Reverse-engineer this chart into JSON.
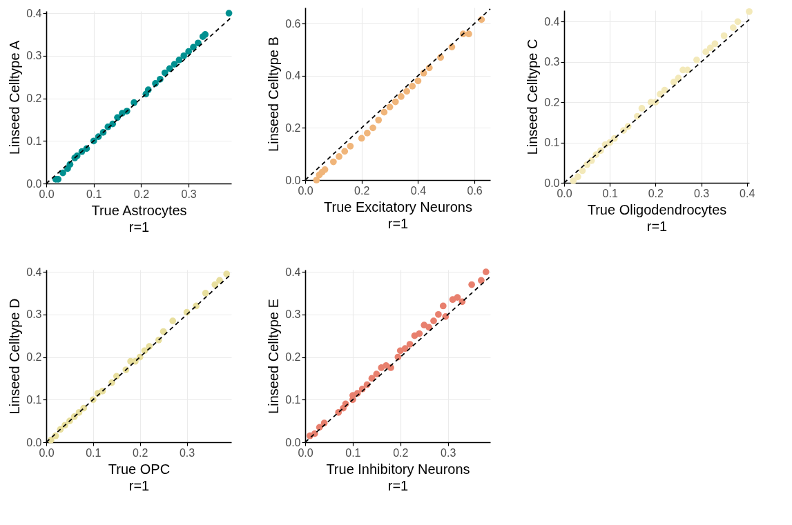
{
  "chart_data": [
    {
      "type": "scatter",
      "xlabel": "True Astrocytes",
      "ylabel": "Linseed Celltype A",
      "annotations": [
        "r=1"
      ],
      "xlim": [
        0,
        0.39
      ],
      "ylim": [
        0,
        0.405
      ],
      "xticks": [
        {
          "value": 0,
          "label": "0.0"
        },
        {
          "value": 0.1,
          "label": "0.1"
        },
        {
          "value": 0.2,
          "label": "0.2"
        },
        {
          "value": 0.3,
          "label": "0.3"
        }
      ],
      "yticks": [
        {
          "value": 0,
          "label": "0.0"
        },
        {
          "value": 0.1,
          "label": "0.1"
        },
        {
          "value": 0.2,
          "label": "0.2"
        },
        {
          "value": 0.3,
          "label": "0.3"
        },
        {
          "value": 0.4,
          "label": "0.4"
        }
      ],
      "grid": true,
      "marker": "circle",
      "series": [
        {
          "color": "#009090",
          "x": [
            0.02,
            0.025,
            0.035,
            0.045,
            0.05,
            0.06,
            0.065,
            0.075,
            0.085,
            0.1,
            0.11,
            0.12,
            0.13,
            0.14,
            0.15,
            0.16,
            0.17,
            0.185,
            0.21,
            0.215,
            0.23,
            0.24,
            0.25,
            0.26,
            0.27,
            0.28,
            0.29,
            0.3,
            0.31,
            0.32,
            0.33,
            0.335,
            0.385
          ],
          "values": [
            0.01,
            0.01,
            0.025,
            0.035,
            0.045,
            0.06,
            0.065,
            0.075,
            0.082,
            0.1,
            0.11,
            0.12,
            0.133,
            0.14,
            0.155,
            0.165,
            0.17,
            0.19,
            0.21,
            0.22,
            0.235,
            0.245,
            0.26,
            0.27,
            0.28,
            0.29,
            0.3,
            0.31,
            0.32,
            0.33,
            0.345,
            0.35,
            0.4
          ]
        },
        {
          "type": "line",
          "color": "#000000",
          "line_style": "dashed",
          "x": [
            0,
            0.39
          ],
          "values": [
            0,
            0.39
          ],
          "marker": "none"
        }
      ]
    },
    {
      "type": "scatter",
      "xlabel": "True Excitatory Neurons",
      "ylabel": "Linseed Celltype B",
      "annotations": [
        "r=1"
      ],
      "xlim": [
        0,
        0.656
      ],
      "ylim": [
        0,
        0.661
      ],
      "xticks": [
        {
          "value": 0,
          "label": "0.0"
        },
        {
          "value": 0.2,
          "label": "0.2"
        },
        {
          "value": 0.4,
          "label": "0.4"
        },
        {
          "value": 0.6,
          "label": "0.6"
        }
      ],
      "yticks": [
        {
          "value": 0,
          "label": "0.0"
        },
        {
          "value": 0.2,
          "label": "0.2"
        },
        {
          "value": 0.4,
          "label": "0.4"
        },
        {
          "value": 0.6,
          "label": "0.6"
        }
      ],
      "grid": true,
      "marker": "circle",
      "series": [
        {
          "color": "#f0b57a",
          "x": [
            0.04,
            0.05,
            0.06,
            0.07,
            0.1,
            0.12,
            0.14,
            0.16,
            0.2,
            0.22,
            0.24,
            0.26,
            0.28,
            0.3,
            0.32,
            0.34,
            0.36,
            0.38,
            0.4,
            0.42,
            0.44,
            0.48,
            0.52,
            0.56,
            0.58,
            0.625
          ],
          "values": [
            0.0,
            0.02,
            0.03,
            0.04,
            0.07,
            0.09,
            0.11,
            0.13,
            0.16,
            0.18,
            0.2,
            0.23,
            0.26,
            0.28,
            0.3,
            0.32,
            0.34,
            0.36,
            0.38,
            0.41,
            0.43,
            0.47,
            0.51,
            0.56,
            0.56,
            0.615
          ]
        },
        {
          "type": "line",
          "color": "#000000",
          "line_style": "dashed",
          "x": [
            0,
            0.656
          ],
          "values": [
            0,
            0.656
          ],
          "marker": "none"
        }
      ]
    },
    {
      "type": "scatter",
      "xlabel": "True Oligodendrocytes",
      "ylabel": "Linseed Celltype C",
      "annotations": [
        "r=1"
      ],
      "xlim": [
        0,
        0.405
      ],
      "ylim": [
        0,
        0.428
      ],
      "xticks": [
        {
          "value": 0,
          "label": "0.0"
        },
        {
          "value": 0.1,
          "label": "0.1"
        },
        {
          "value": 0.2,
          "label": "0.2"
        },
        {
          "value": 0.3,
          "label": "0.3"
        },
        {
          "value": 0.4,
          "label": "0.4"
        }
      ],
      "yticks": [
        {
          "value": 0,
          "label": "0.0"
        },
        {
          "value": 0.1,
          "label": "0.1"
        },
        {
          "value": 0.2,
          "label": "0.2"
        },
        {
          "value": 0.3,
          "label": "0.3"
        },
        {
          "value": 0.4,
          "label": "0.4"
        }
      ],
      "grid": true,
      "marker": "circle",
      "series": [
        {
          "color": "#f3e9b9",
          "x": [
            0.02,
            0.03,
            0.04,
            0.05,
            0.06,
            0.07,
            0.08,
            0.09,
            0.1,
            0.11,
            0.13,
            0.14,
            0.16,
            0.17,
            0.19,
            0.2,
            0.21,
            0.22,
            0.24,
            0.25,
            0.26,
            0.27,
            0.29,
            0.31,
            0.32,
            0.33,
            0.35,
            0.37,
            0.38,
            0.405
          ],
          "values": [
            0.005,
            0.015,
            0.03,
            0.045,
            0.055,
            0.07,
            0.08,
            0.095,
            0.1,
            0.11,
            0.13,
            0.14,
            0.165,
            0.185,
            0.2,
            0.2,
            0.22,
            0.23,
            0.25,
            0.26,
            0.28,
            0.28,
            0.305,
            0.325,
            0.335,
            0.345,
            0.365,
            0.385,
            0.4,
            0.425
          ]
        },
        {
          "type": "line",
          "color": "#000000",
          "line_style": "dashed",
          "x": [
            0,
            0.405
          ],
          "values": [
            0,
            0.405
          ],
          "marker": "none"
        }
      ]
    },
    {
      "type": "scatter",
      "xlabel": "True OPC",
      "ylabel": "Linseed Celltype D",
      "annotations": [
        "r=1"
      ],
      "xlim": [
        0,
        0.395
      ],
      "ylim": [
        0,
        0.405
      ],
      "xticks": [
        {
          "value": 0,
          "label": "0.0"
        },
        {
          "value": 0.1,
          "label": "0.1"
        },
        {
          "value": 0.2,
          "label": "0.2"
        },
        {
          "value": 0.3,
          "label": "0.3"
        }
      ],
      "yticks": [
        {
          "value": 0,
          "label": "0.0"
        },
        {
          "value": 0.1,
          "label": "0.1"
        },
        {
          "value": 0.2,
          "label": "0.2"
        },
        {
          "value": 0.3,
          "label": "0.3"
        },
        {
          "value": 0.4,
          "label": "0.4"
        }
      ],
      "grid": true,
      "marker": "circle",
      "series": [
        {
          "color": "#e8df9e",
          "x": [
            0.01,
            0.02,
            0.03,
            0.04,
            0.05,
            0.06,
            0.07,
            0.08,
            0.1,
            0.11,
            0.12,
            0.14,
            0.15,
            0.17,
            0.18,
            0.19,
            0.2,
            0.21,
            0.22,
            0.24,
            0.25,
            0.27,
            0.3,
            0.32,
            0.34,
            0.36,
            0.37,
            0.385
          ],
          "values": [
            0.005,
            0.015,
            0.03,
            0.04,
            0.05,
            0.06,
            0.07,
            0.08,
            0.1,
            0.115,
            0.12,
            0.14,
            0.155,
            0.17,
            0.19,
            0.19,
            0.2,
            0.215,
            0.225,
            0.24,
            0.26,
            0.285,
            0.305,
            0.32,
            0.35,
            0.37,
            0.38,
            0.395
          ]
        },
        {
          "type": "line",
          "color": "#000000",
          "line_style": "dashed",
          "x": [
            0,
            0.395
          ],
          "values": [
            0,
            0.395
          ],
          "marker": "none"
        }
      ]
    },
    {
      "type": "scatter",
      "xlabel": "True Inhibitory Neurons",
      "ylabel": "Linseed Celltype E",
      "annotations": [
        "r=1"
      ],
      "xlim": [
        0,
        0.389
      ],
      "ylim": [
        0,
        0.405
      ],
      "xticks": [
        {
          "value": 0,
          "label": "0.0"
        },
        {
          "value": 0.1,
          "label": "0.1"
        },
        {
          "value": 0.2,
          "label": "0.2"
        },
        {
          "value": 0.3,
          "label": "0.3"
        }
      ],
      "yticks": [
        {
          "value": 0,
          "label": "0.0"
        },
        {
          "value": 0.1,
          "label": "0.1"
        },
        {
          "value": 0.2,
          "label": "0.2"
        },
        {
          "value": 0.3,
          "label": "0.3"
        },
        {
          "value": 0.4,
          "label": "0.4"
        }
      ],
      "grid": true,
      "marker": "circle",
      "series": [
        {
          "color": "#e8806e",
          "x": [
            0.01,
            0.02,
            0.03,
            0.04,
            0.07,
            0.08,
            0.085,
            0.1,
            0.1,
            0.11,
            0.12,
            0.13,
            0.14,
            0.15,
            0.16,
            0.17,
            0.18,
            0.195,
            0.2,
            0.21,
            0.22,
            0.23,
            0.24,
            0.25,
            0.26,
            0.27,
            0.28,
            0.29,
            0.295,
            0.31,
            0.32,
            0.33,
            0.35,
            0.37,
            0.38
          ],
          "values": [
            0.015,
            0.02,
            0.035,
            0.045,
            0.07,
            0.08,
            0.09,
            0.1,
            0.11,
            0.115,
            0.125,
            0.135,
            0.15,
            0.16,
            0.175,
            0.18,
            0.175,
            0.2,
            0.215,
            0.22,
            0.23,
            0.25,
            0.255,
            0.275,
            0.27,
            0.285,
            0.3,
            0.32,
            0.295,
            0.335,
            0.34,
            0.33,
            0.37,
            0.38,
            0.4
          ]
        },
        {
          "type": "line",
          "color": "#000000",
          "line_style": "dashed",
          "x": [
            0,
            0.389
          ],
          "values": [
            0,
            0.389
          ],
          "marker": "none"
        }
      ]
    }
  ]
}
